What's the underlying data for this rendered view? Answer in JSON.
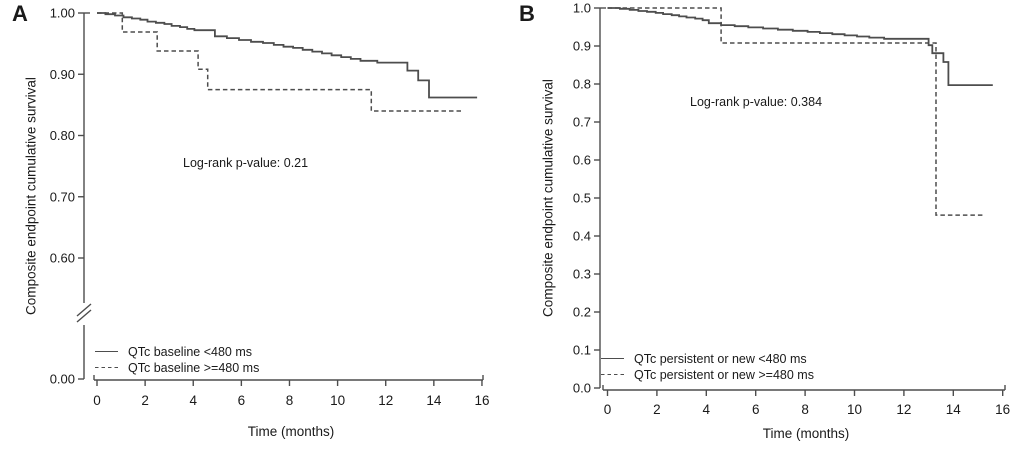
{
  "figure": {
    "background": "#ffffff",
    "curve_color": "#4d4d4d",
    "axis_color": "#4d4d4d",
    "text_color": "#1a1a1a"
  },
  "chart_data": [
    {
      "type": "line",
      "subtype": "kaplan-meier-step",
      "panel_label": "A",
      "ylabel": "Composite endpoint cumulative survival",
      "xlabel": "Time (months)",
      "annotation": "Log-rank p-value: 0.21",
      "legend_position": "lower-left",
      "grid": false,
      "xlim": [
        0,
        16
      ],
      "x_ticks": [
        {
          "value": 0,
          "label": "0"
        },
        {
          "value": 2,
          "label": "2"
        },
        {
          "value": 4,
          "label": "4"
        },
        {
          "value": 6,
          "label": "6"
        },
        {
          "value": 8,
          "label": "8"
        },
        {
          "value": 10,
          "label": "10"
        },
        {
          "value": 12,
          "label": "12"
        },
        {
          "value": 14,
          "label": "14"
        },
        {
          "value": 16,
          "label": "16"
        }
      ],
      "ylim_shown": [
        0.6,
        1.0
      ],
      "axis_break": true,
      "y_ticks": [
        {
          "value": 1.0,
          "label": "1.00"
        },
        {
          "value": 0.9,
          "label": "0.90"
        },
        {
          "value": 0.8,
          "label": "0.80"
        },
        {
          "value": 0.7,
          "label": "0.70"
        },
        {
          "value": 0.6,
          "label": "0.60"
        },
        {
          "value": 0.0,
          "label": "0.00",
          "below_break": true
        }
      ],
      "series": [
        {
          "name": "QTc baseline <480 ms",
          "style": "solid",
          "end_time": 15.8,
          "points": [
            [
              0,
              1.0
            ],
            [
              0.35,
              0.998
            ],
            [
              0.75,
              0.996
            ],
            [
              1.1,
              0.993
            ],
            [
              1.45,
              0.991
            ],
            [
              1.8,
              0.989
            ],
            [
              2.1,
              0.986
            ],
            [
              2.45,
              0.984
            ],
            [
              2.8,
              0.982
            ],
            [
              3.1,
              0.979
            ],
            [
              3.45,
              0.977
            ],
            [
              3.75,
              0.974
            ],
            [
              4.05,
              0.972
            ],
            [
              4.9,
              0.962
            ],
            [
              5.4,
              0.959
            ],
            [
              5.9,
              0.956
            ],
            [
              6.4,
              0.953
            ],
            [
              6.9,
              0.951
            ],
            [
              7.35,
              0.948
            ],
            [
              7.75,
              0.945
            ],
            [
              8.15,
              0.943
            ],
            [
              8.55,
              0.94
            ],
            [
              8.95,
              0.937
            ],
            [
              9.35,
              0.934
            ],
            [
              9.75,
              0.931
            ],
            [
              10.15,
              0.928
            ],
            [
              10.55,
              0.925
            ],
            [
              10.95,
              0.922
            ],
            [
              11.65,
              0.919
            ],
            [
              12.9,
              0.906
            ],
            [
              13.35,
              0.89
            ],
            [
              13.8,
              0.862
            ]
          ]
        },
        {
          "name": "QTc baseline >=480 ms",
          "style": "dashed",
          "end_time": 15.2,
          "points": [
            [
              0,
              1.0
            ],
            [
              1.05,
              0.969
            ],
            [
              2.5,
              0.938
            ],
            [
              4.2,
              0.908
            ],
            [
              4.6,
              0.875
            ],
            [
              11.4,
              0.84
            ]
          ]
        }
      ]
    },
    {
      "type": "line",
      "subtype": "kaplan-meier-step",
      "panel_label": "B",
      "ylabel": "Composite endpoint cumulative survival",
      "xlabel": "Time (months)",
      "annotation": "Log-rank p-value: 0.384",
      "legend_position": "lower-left",
      "grid": false,
      "xlim": [
        0,
        16
      ],
      "x_ticks": [
        {
          "value": 0,
          "label": "0"
        },
        {
          "value": 2,
          "label": "2"
        },
        {
          "value": 4,
          "label": "4"
        },
        {
          "value": 6,
          "label": "6"
        },
        {
          "value": 8,
          "label": "8"
        },
        {
          "value": 10,
          "label": "10"
        },
        {
          "value": 12,
          "label": "12"
        },
        {
          "value": 14,
          "label": "14"
        },
        {
          "value": 16,
          "label": "16"
        }
      ],
      "ylim_shown": [
        0.0,
        1.0
      ],
      "axis_break": false,
      "y_ticks": [
        {
          "value": 1.0,
          "label": "1.0"
        },
        {
          "value": 0.9,
          "label": "0.9"
        },
        {
          "value": 0.8,
          "label": "0.8"
        },
        {
          "value": 0.7,
          "label": "0.7"
        },
        {
          "value": 0.6,
          "label": "0.6"
        },
        {
          "value": 0.5,
          "label": "0.5"
        },
        {
          "value": 0.4,
          "label": "0.4"
        },
        {
          "value": 0.3,
          "label": "0.3"
        },
        {
          "value": 0.2,
          "label": "0.2"
        },
        {
          "value": 0.1,
          "label": "0.1"
        },
        {
          "value": 0.0,
          "label": "0.0"
        }
      ],
      "series": [
        {
          "name": "QTc persistent or new <480 ms",
          "style": "solid",
          "end_time": 15.6,
          "points": [
            [
              0,
              1.0
            ],
            [
              0.5,
              0.998
            ],
            [
              0.9,
              0.995
            ],
            [
              1.25,
              0.992
            ],
            [
              1.6,
              0.99
            ],
            [
              1.95,
              0.987
            ],
            [
              2.25,
              0.984
            ],
            [
              2.6,
              0.981
            ],
            [
              2.9,
              0.978
            ],
            [
              3.2,
              0.975
            ],
            [
              3.55,
              0.972
            ],
            [
              3.85,
              0.968
            ],
            [
              4.1,
              0.96
            ],
            [
              4.6,
              0.955
            ],
            [
              5.15,
              0.952
            ],
            [
              5.7,
              0.949
            ],
            [
              6.3,
              0.946
            ],
            [
              6.9,
              0.943
            ],
            [
              7.5,
              0.94
            ],
            [
              8.1,
              0.937
            ],
            [
              8.6,
              0.934
            ],
            [
              9.1,
              0.931
            ],
            [
              9.6,
              0.928
            ],
            [
              10.1,
              0.925
            ],
            [
              10.6,
              0.922
            ],
            [
              11.2,
              0.919
            ],
            [
              13.0,
              0.902
            ],
            [
              13.15,
              0.881
            ],
            [
              13.6,
              0.858
            ],
            [
              13.8,
              0.797
            ]
          ]
        },
        {
          "name": "QTc persistent or new >=480 ms",
          "style": "dashed",
          "end_time": 15.3,
          "points": [
            [
              0,
              1.0
            ],
            [
              4.6,
              0.908
            ],
            [
              13.3,
              0.455
            ]
          ]
        }
      ]
    }
  ]
}
